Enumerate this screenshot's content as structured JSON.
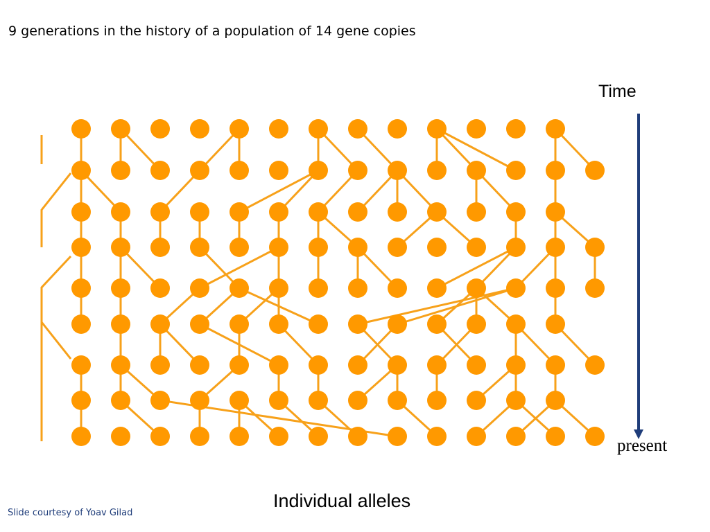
{
  "title": "9 generations in the history of a population of 14 gene copies",
  "time_label": "Time",
  "present_label": "present",
  "axis_label": "Individual alleles",
  "credit": "Slide courtesy of Yoav Gilad",
  "colors": {
    "node": "#FF9900",
    "line": "#F7A11A",
    "arrow": "#1F3D7A",
    "credit": "#1F3D7A"
  },
  "diagram": {
    "rows": [
      [
        1,
        1,
        1,
        1,
        1,
        1,
        1,
        1,
        1,
        1,
        1,
        1,
        1,
        0
      ],
      [
        1,
        1,
        1,
        1,
        1,
        1,
        1,
        1,
        1,
        1,
        1,
        1,
        1,
        1
      ],
      [
        1,
        1,
        1,
        1,
        1,
        1,
        1,
        1,
        1,
        1,
        1,
        1,
        1,
        0
      ],
      [
        1,
        1,
        1,
        1,
        1,
        1,
        1,
        1,
        1,
        1,
        1,
        1,
        1,
        1
      ],
      [
        1,
        1,
        1,
        1,
        1,
        1,
        1,
        1,
        1,
        1,
        1,
        1,
        1,
        1
      ],
      [
        1,
        1,
        1,
        1,
        1,
        1,
        1,
        1,
        1,
        1,
        1,
        1,
        1,
        0
      ],
      [
        1,
        1,
        1,
        1,
        1,
        1,
        1,
        1,
        1,
        1,
        1,
        1,
        1,
        1
      ],
      [
        1,
        1,
        1,
        1,
        1,
        1,
        1,
        1,
        1,
        1,
        1,
        1,
        1,
        0
      ],
      [
        1,
        1,
        1,
        1,
        1,
        1,
        1,
        1,
        1,
        1,
        1,
        1,
        1,
        1
      ]
    ],
    "edges": [
      [
        0,
        0,
        1,
        0
      ],
      [
        0,
        1,
        1,
        1
      ],
      [
        0,
        1,
        1,
        2
      ],
      [
        0,
        4,
        1,
        4
      ],
      [
        0,
        4,
        1,
        3
      ],
      [
        0,
        6,
        1,
        6
      ],
      [
        0,
        6,
        1,
        7
      ],
      [
        0,
        7,
        1,
        8
      ],
      [
        0,
        9,
        1,
        9
      ],
      [
        0,
        9,
        1,
        10
      ],
      [
        0,
        9,
        1,
        11
      ],
      [
        0,
        12,
        1,
        12
      ],
      [
        0,
        12,
        1,
        13
      ],
      [
        1,
        0,
        2,
        0
      ],
      [
        1,
        0,
        2,
        1
      ],
      [
        1,
        3,
        2,
        2
      ],
      [
        1,
        6,
        2,
        4
      ],
      [
        1,
        6,
        2,
        5
      ],
      [
        1,
        7,
        2,
        6
      ],
      [
        1,
        8,
        2,
        7
      ],
      [
        1,
        8,
        2,
        8
      ],
      [
        1,
        8,
        2,
        9
      ],
      [
        1,
        10,
        2,
        10
      ],
      [
        1,
        10,
        2,
        11
      ],
      [
        1,
        12,
        2,
        12
      ],
      [
        2,
        0,
        3,
        0
      ],
      [
        2,
        1,
        3,
        1
      ],
      [
        2,
        2,
        3,
        2
      ],
      [
        2,
        3,
        3,
        3
      ],
      [
        2,
        4,
        3,
        4
      ],
      [
        2,
        5,
        3,
        5
      ],
      [
        2,
        6,
        3,
        6
      ],
      [
        2,
        6,
        3,
        7
      ],
      [
        2,
        9,
        3,
        8
      ],
      [
        2,
        9,
        3,
        10
      ],
      [
        2,
        11,
        3,
        11
      ],
      [
        2,
        12,
        3,
        12
      ],
      [
        2,
        12,
        3,
        13
      ],
      [
        3,
        0,
        4,
        0
      ],
      [
        3,
        1,
        4,
        1
      ],
      [
        3,
        1,
        4,
        2
      ],
      [
        3,
        3,
        4,
        4
      ],
      [
        3,
        5,
        4,
        3
      ],
      [
        3,
        5,
        4,
        5
      ],
      [
        3,
        6,
        4,
        6
      ],
      [
        3,
        7,
        4,
        7
      ],
      [
        3,
        7,
        4,
        8
      ],
      [
        3,
        11,
        4,
        9
      ],
      [
        3,
        11,
        4,
        10
      ],
      [
        3,
        12,
        4,
        11
      ],
      [
        3,
        12,
        4,
        12
      ],
      [
        3,
        13,
        4,
        13
      ],
      [
        4,
        0,
        5,
        0
      ],
      [
        4,
        1,
        5,
        1
      ],
      [
        4,
        3,
        5,
        2
      ],
      [
        4,
        4,
        5,
        3
      ],
      [
        4,
        4,
        5,
        6
      ],
      [
        4,
        5,
        5,
        4
      ],
      [
        4,
        5,
        5,
        5
      ],
      [
        4,
        10,
        5,
        9
      ],
      [
        4,
        10,
        5,
        10
      ],
      [
        4,
        10,
        5,
        11
      ],
      [
        4,
        11,
        5,
        7
      ],
      [
        4,
        11,
        5,
        8
      ],
      [
        4,
        12,
        5,
        12
      ],
      [
        5,
        1,
        6,
        1
      ],
      [
        5,
        2,
        6,
        2
      ],
      [
        5,
        2,
        6,
        3
      ],
      [
        5,
        3,
        6,
        5
      ],
      [
        5,
        4,
        6,
        4
      ],
      [
        5,
        5,
        6,
        6
      ],
      [
        5,
        7,
        6,
        8
      ],
      [
        5,
        8,
        6,
        7
      ],
      [
        5,
        9,
        6,
        10
      ],
      [
        5,
        10,
        6,
        9
      ],
      [
        5,
        11,
        6,
        11
      ],
      [
        5,
        11,
        6,
        12
      ],
      [
        5,
        12,
        6,
        13
      ],
      [
        6,
        0,
        7,
        0
      ],
      [
        6,
        1,
        7,
        1
      ],
      [
        6,
        1,
        7,
        2
      ],
      [
        6,
        4,
        7,
        3
      ],
      [
        6,
        5,
        7,
        5
      ],
      [
        6,
        6,
        7,
        6
      ],
      [
        6,
        8,
        7,
        7
      ],
      [
        6,
        8,
        7,
        8
      ],
      [
        6,
        9,
        7,
        9
      ],
      [
        6,
        11,
        7,
        10
      ],
      [
        6,
        11,
        7,
        11
      ],
      [
        6,
        12,
        7,
        12
      ],
      [
        7,
        0,
        8,
        0
      ],
      [
        7,
        1,
        8,
        2
      ],
      [
        7,
        2,
        8,
        8
      ],
      [
        7,
        3,
        8,
        3
      ],
      [
        7,
        4,
        8,
        4
      ],
      [
        7,
        4,
        8,
        5
      ],
      [
        7,
        5,
        8,
        6
      ],
      [
        7,
        6,
        8,
        7
      ],
      [
        7,
        8,
        8,
        9
      ],
      [
        7,
        11,
        8,
        10
      ],
      [
        7,
        11,
        8,
        12
      ],
      [
        7,
        12,
        8,
        11
      ],
      [
        7,
        12,
        8,
        13
      ]
    ]
  }
}
